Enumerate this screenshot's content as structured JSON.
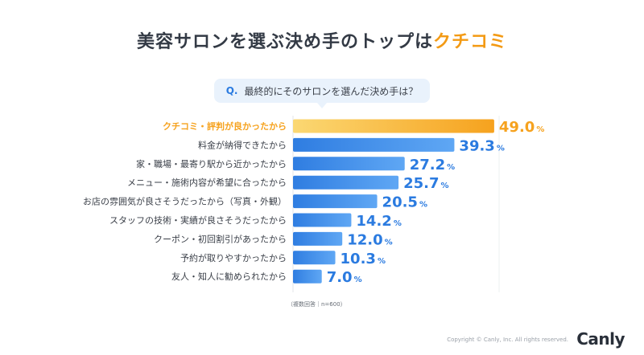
{
  "header": {
    "title_main": "美容サロンを選ぶ決め手のトップは",
    "title_accent": "クチコミ"
  },
  "question": {
    "prefix": "Q.",
    "text": "最終的にそのサロンを選んだ決め手は？"
  },
  "chart_data": {
    "type": "bar",
    "orientation": "horizontal",
    "title": "美容サロンを選ぶ決め手のトップはクチコミ",
    "unit": "%",
    "categories": [
      "クチコミ・評判が良かったから",
      "料金が納得できたから",
      "家・職場・最寄り駅から近かったから",
      "メニュー・施術内容が希望に合ったから",
      "お店の雰囲気が良さそうだったから（写真・外観）",
      "スタッフの技術・実績が良さそうだったから",
      "クーポン・初回割引があったから",
      "予約が取りやすかったから",
      "友人・知人に勧められたから"
    ],
    "values": [
      49.0,
      39.3,
      27.2,
      25.7,
      20.5,
      14.2,
      12.0,
      10.3,
      7.0
    ],
    "value_labels": [
      "49.0",
      "39.3",
      "27.2",
      "25.7",
      "20.5",
      "14.2",
      "12.0",
      "10.3",
      "7.0"
    ],
    "highlight_index": 0,
    "xlim": [
      0,
      100
    ],
    "colors": {
      "highlight": "#f6a21e",
      "highlight_light": "#fbd873",
      "bar": "#2f7de1",
      "bar_light": "#5fa7f4",
      "label": "#3a3f48",
      "value": "#2b7be0"
    }
  },
  "footnote": "（複数回答｜n=600）",
  "footer": {
    "copyright": "Copyright © Canly, Inc. All rights reserved.",
    "brand": "Canly"
  }
}
